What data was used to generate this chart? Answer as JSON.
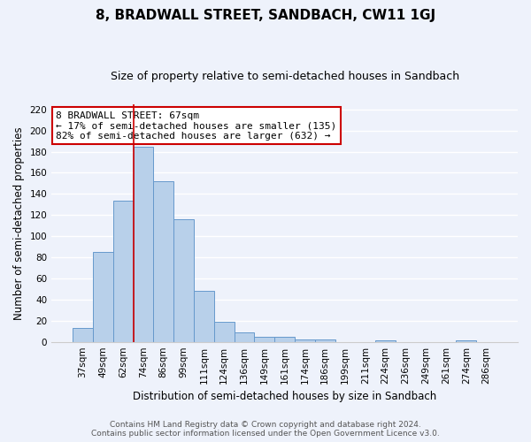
{
  "title": "8, BRADWALL STREET, SANDBACH, CW11 1GJ",
  "subtitle": "Size of property relative to semi-detached houses in Sandbach",
  "xlabel": "Distribution of semi-detached houses by size in Sandbach",
  "ylabel": "Number of semi-detached properties",
  "bar_labels": [
    "37sqm",
    "49sqm",
    "62sqm",
    "74sqm",
    "86sqm",
    "99sqm",
    "111sqm",
    "124sqm",
    "136sqm",
    "149sqm",
    "161sqm",
    "174sqm",
    "186sqm",
    "199sqm",
    "211sqm",
    "224sqm",
    "236sqm",
    "249sqm",
    "261sqm",
    "274sqm",
    "286sqm"
  ],
  "bar_values": [
    13,
    85,
    134,
    185,
    152,
    116,
    48,
    19,
    9,
    5,
    5,
    2,
    2,
    0,
    0,
    1,
    0,
    0,
    0,
    1,
    0
  ],
  "bar_color": "#b8d0ea",
  "bar_edge_color": "#6699cc",
  "annotation_box_text": "8 BRADWALL STREET: 67sqm\n← 17% of semi-detached houses are smaller (135)\n82% of semi-detached houses are larger (632) →",
  "annotation_box_color": "#ffffff",
  "annotation_box_edge_color": "#cc0000",
  "red_line_x": 2.5,
  "ylim": [
    0,
    225
  ],
  "yticks": [
    0,
    20,
    40,
    60,
    80,
    100,
    120,
    140,
    160,
    180,
    200,
    220
  ],
  "footer_line1": "Contains HM Land Registry data © Crown copyright and database right 2024.",
  "footer_line2": "Contains public sector information licensed under the Open Government Licence v3.0.",
  "background_color": "#eef2fb",
  "grid_color": "#ffffff",
  "title_fontsize": 11,
  "subtitle_fontsize": 9,
  "axis_label_fontsize": 8.5,
  "tick_fontsize": 7.5,
  "footer_fontsize": 6.5,
  "ann_fontsize": 8
}
